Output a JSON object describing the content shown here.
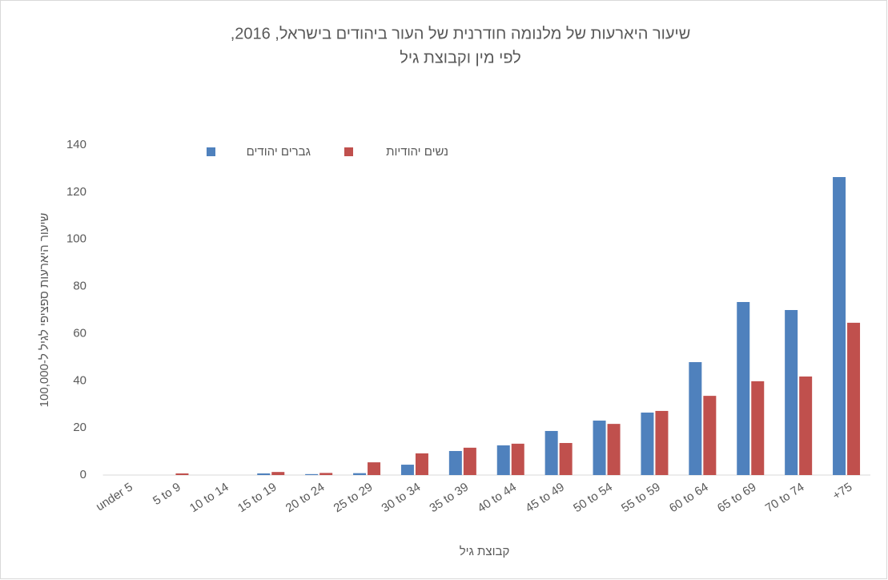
{
  "chart_data": {
    "type": "bar",
    "title": "שיעור היארעות של מלנומה חודרנית של העור ביהודים בישראל, 2016,",
    "subtitle": "לפי מין וקבוצת גיל",
    "y_label": "שיעור היארעות ספציפי לגיל ל-100,000",
    "x_label": "קבוצת גיל",
    "categories": [
      "under 5",
      "5 to 9",
      "10 to 14",
      "15 to 19",
      "20 to 24",
      "25 to 29",
      "30 to 34",
      "35 to 39",
      "40 to 44",
      "45 to 49",
      "50 to 54",
      "55 to 59",
      "60 to 64",
      "65 to 69",
      "70 to 74",
      "+75"
    ],
    "series": [
      {
        "name": "גברים יהודים",
        "color": "#4f81bd",
        "values": [
          0,
          0,
          0,
          0.7,
          0.4,
          0.8,
          4.4,
          10.2,
          12.6,
          18.7,
          23.1,
          26.5,
          47.9,
          73.4,
          70,
          126.4
        ]
      },
      {
        "name": "נשים יהודיות",
        "color": "#c0504d",
        "values": [
          0,
          0.7,
          0,
          1.3,
          0.9,
          5.4,
          9.2,
          11.6,
          13.3,
          13.6,
          21.7,
          27.2,
          33.6,
          39.8,
          41.8,
          64.6
        ]
      }
    ],
    "ylim": [
      0,
      140
    ],
    "yticks": [
      0,
      20,
      40,
      60,
      80,
      100,
      120,
      140
    ],
    "grid": false,
    "legend": "top"
  }
}
